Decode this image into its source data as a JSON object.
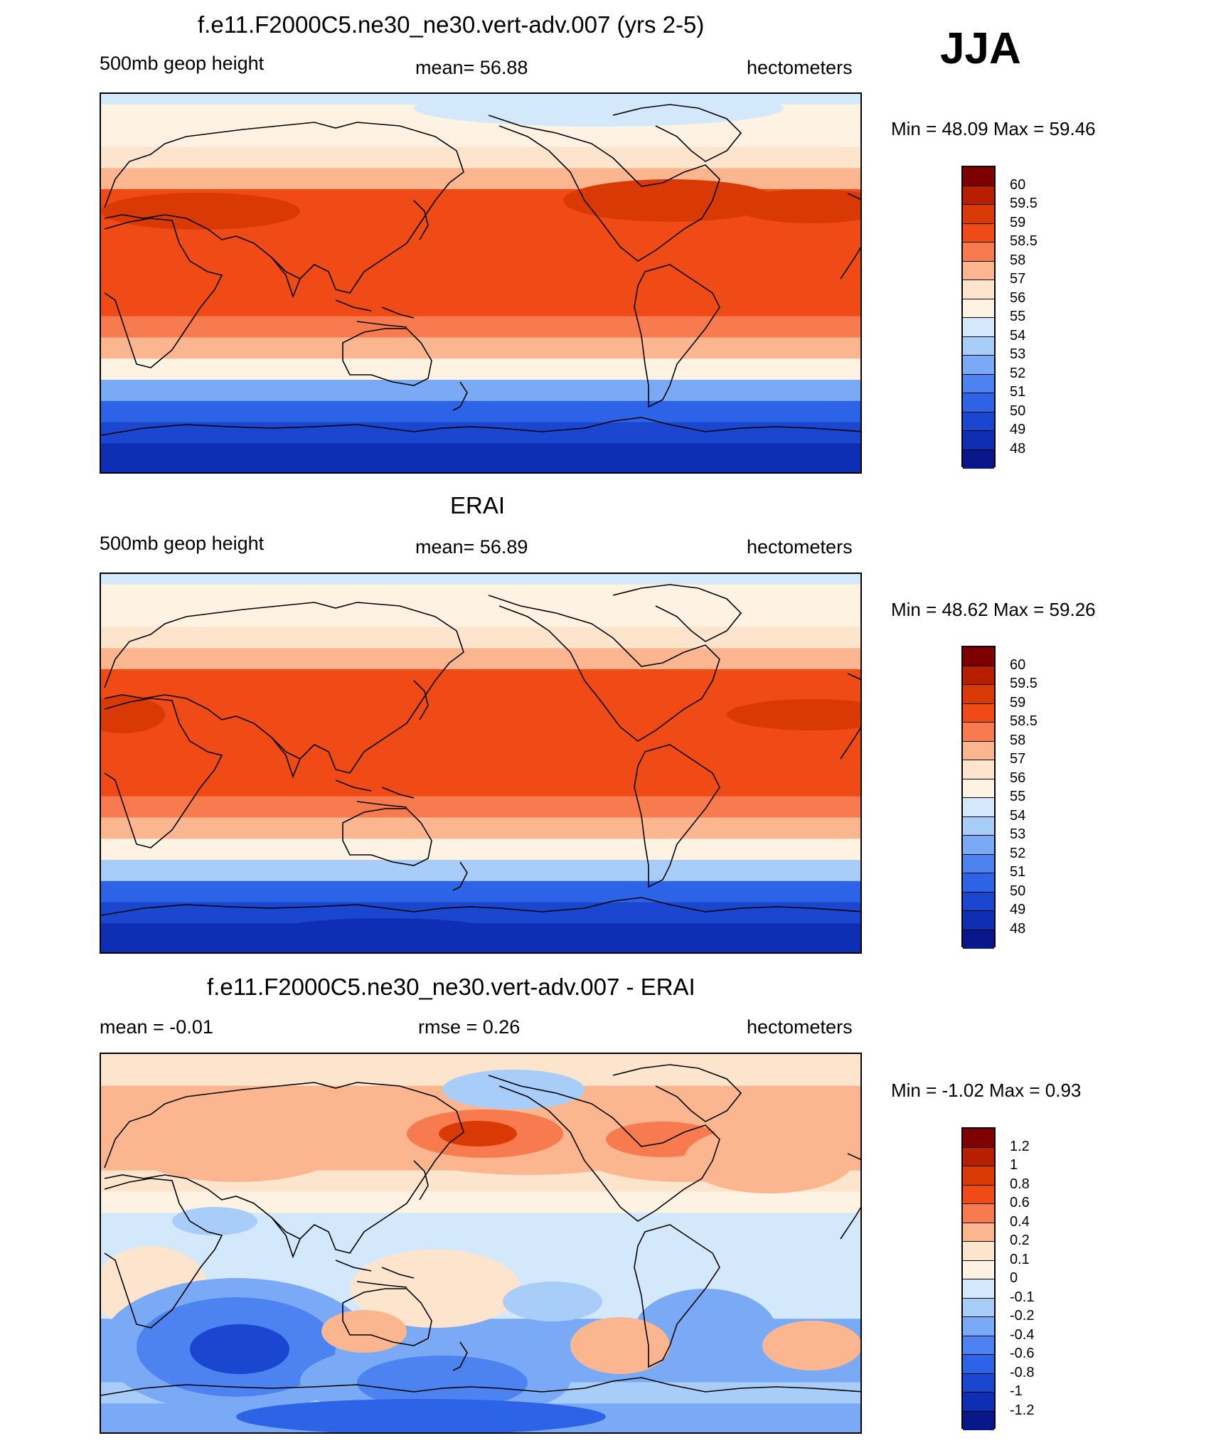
{
  "season": "JJA",
  "chart_data": [
    {
      "type": "heatmap",
      "title": "f.e11.F2000C5.ne30_ne30.vert-adv.007 (yrs 2-5)",
      "left_label": "500mb geop height",
      "center_label": "mean=  56.88",
      "right_label": "hectometers",
      "minmax": "Min =  48.09 Max =  59.46",
      "mean": 56.88,
      "min": 48.09,
      "max": 59.46,
      "colorbar_labels": [
        "60",
        "59.5",
        "59",
        "58.5",
        "58",
        "57",
        "56",
        "55",
        "54",
        "53",
        "52",
        "51",
        "50",
        "49",
        "48"
      ],
      "colorbar_colors": [
        "#7f0000",
        "#b71f00",
        "#d93a05",
        "#f04a16",
        "#f77b4f",
        "#fbb68f",
        "#fde4cc",
        "#fef2e3",
        "#d4e8fb",
        "#a8cdf8",
        "#7aaaf5",
        "#4c83f0",
        "#2d63e6",
        "#1a46d0",
        "#0e2fb3",
        "#08178a"
      ],
      "series": [
        {
          "name": "band_latitudes_deg",
          "values": [
            90,
            80,
            70,
            60,
            50,
            40,
            30,
            20,
            10,
            0,
            -10,
            -20,
            -30,
            -40,
            -50,
            -60,
            -70,
            -80,
            -90
          ]
        },
        {
          "name": "zonal_mean_hm",
          "values": [
            54.5,
            55.2,
            55.8,
            56.4,
            57.6,
            58.7,
            58.9,
            58.6,
            58.5,
            58.5,
            58.5,
            58.2,
            57.3,
            55.3,
            52.8,
            50.5,
            49.3,
            48.6,
            48.2
          ]
        }
      ]
    },
    {
      "type": "heatmap",
      "title": "ERAI",
      "left_label": "500mb geop height",
      "center_label": "mean=  56.89",
      "right_label": "hectometers",
      "minmax": "Min =  48.62 Max =  59.26",
      "mean": 56.89,
      "min": 48.62,
      "max": 59.26,
      "colorbar_labels": [
        "60",
        "59.5",
        "59",
        "58.5",
        "58",
        "57",
        "56",
        "55",
        "54",
        "53",
        "52",
        "51",
        "50",
        "49",
        "48"
      ],
      "colorbar_colors": [
        "#7f0000",
        "#b71f00",
        "#d93a05",
        "#f04a16",
        "#f77b4f",
        "#fbb68f",
        "#fde4cc",
        "#fef2e3",
        "#d4e8fb",
        "#a8cdf8",
        "#7aaaf5",
        "#4c83f0",
        "#2d63e6",
        "#1a46d0",
        "#0e2fb3",
        "#08178a"
      ],
      "series": [
        {
          "name": "band_latitudes_deg",
          "values": [
            90,
            80,
            70,
            60,
            50,
            40,
            30,
            20,
            10,
            0,
            -10,
            -20,
            -30,
            -40,
            -50,
            -60,
            -70,
            -80,
            -90
          ]
        },
        {
          "name": "zonal_mean_hm",
          "values": [
            54.4,
            55.1,
            55.7,
            56.3,
            57.4,
            58.5,
            58.8,
            58.6,
            58.5,
            58.5,
            58.5,
            58.2,
            57.2,
            55.4,
            53.0,
            50.7,
            49.5,
            48.9,
            48.7
          ]
        }
      ]
    },
    {
      "type": "heatmap",
      "title": "f.e11.F2000C5.ne30_ne30.vert-adv.007 - ERAI",
      "left_label": "mean =  -0.01",
      "center_label": "rmse =   0.26",
      "right_label": "hectometers",
      "minmax": "Min =  -1.02 Max =   0.93",
      "mean": -0.01,
      "rmse": 0.26,
      "min": -1.02,
      "max": 0.93,
      "colorbar_labels": [
        "1.2",
        "1",
        "0.8",
        "0.6",
        "0.4",
        "0.2",
        "0.1",
        "0",
        "-0.1",
        "-0.2",
        "-0.4",
        "-0.6",
        "-0.8",
        "-1",
        "-1.2"
      ],
      "colorbar_colors": [
        "#7f0000",
        "#b71f00",
        "#d93a05",
        "#f04a16",
        "#f77b4f",
        "#fbb68f",
        "#fde4cc",
        "#fef2e3",
        "#d4e8fb",
        "#a8cdf8",
        "#7aaaf5",
        "#4c83f0",
        "#2d63e6",
        "#1a46d0",
        "#0e2fb3",
        "#08178a"
      ],
      "series": [
        {
          "name": "band_latitudes_deg",
          "values": [
            90,
            80,
            70,
            60,
            50,
            40,
            30,
            20,
            10,
            0,
            -10,
            -20,
            -30,
            -40,
            -50,
            -60,
            -70,
            -80,
            -90
          ]
        },
        {
          "name": "zonal_mean_diff_hm",
          "values": [
            0.1,
            0.15,
            0.2,
            0.25,
            0.2,
            0.2,
            0.15,
            0.05,
            -0.05,
            -0.05,
            -0.05,
            -0.1,
            -0.1,
            -0.3,
            -0.4,
            -0.3,
            -0.2,
            -0.3,
            -0.3
          ]
        }
      ]
    }
  ]
}
